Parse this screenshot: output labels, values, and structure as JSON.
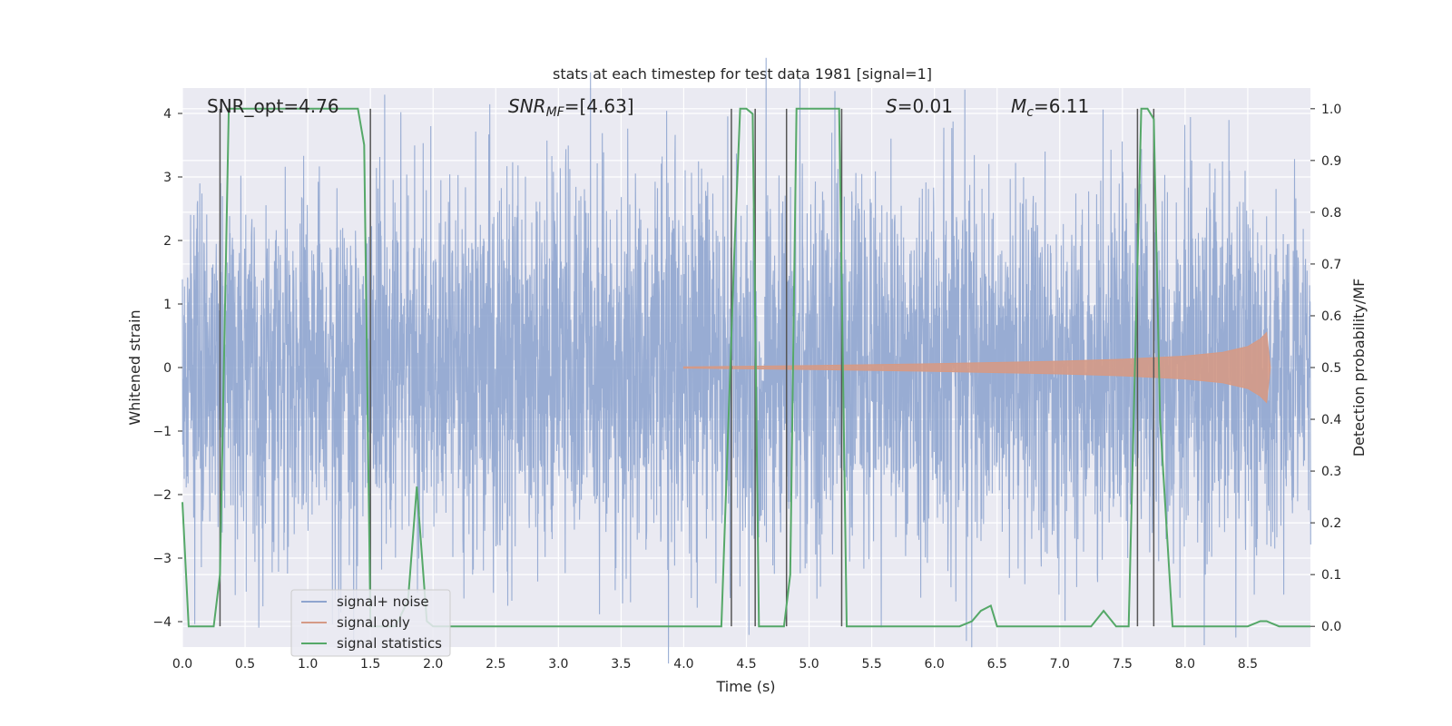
{
  "chart_data": {
    "type": "line",
    "title": "stats at each timestep for test data 1981 [signal=1]",
    "xlabel": "Time (s)",
    "ylabel_left": "Whitened strain",
    "ylabel_right": "Detection probability/MF",
    "xlim": [
      0.0,
      9.0
    ],
    "ylim_left": [
      -4.4,
      4.4
    ],
    "ylim_right": [
      -0.04,
      1.04
    ],
    "grid": true,
    "legend_position": "lower-left",
    "x_ticks": [
      "0.0",
      "0.5",
      "1.0",
      "1.5",
      "2.0",
      "2.5",
      "3.0",
      "3.5",
      "4.0",
      "4.5",
      "5.0",
      "5.5",
      "6.0",
      "6.5",
      "7.0",
      "7.5",
      "8.0",
      "8.5"
    ],
    "y_left_ticks": [
      "−4",
      "−3",
      "−2",
      "−1",
      "0",
      "1",
      "2",
      "3",
      "4"
    ],
    "y_right_ticks": [
      "0.0",
      "0.1",
      "0.2",
      "0.3",
      "0.4",
      "0.5",
      "0.6",
      "0.7",
      "0.8",
      "0.9",
      "1.0"
    ],
    "annotations": {
      "snr_opt": "SNR_opt=4.76",
      "snr_mf_base": "SNR",
      "snr_mf_sub": "MF",
      "snr_mf_value": "=[4.63]",
      "s_symbol": "S",
      "s_value": "=0.01",
      "mc_base": "M",
      "mc_sub": "c",
      "mc_value": "=6.11"
    },
    "vertical_markers": [
      0.3,
      1.5,
      4.38,
      4.57,
      4.82,
      5.26,
      7.62,
      7.75
    ],
    "series": [
      {
        "name": "signal+ noise",
        "color": "#8fa5cf",
        "axis": "left",
        "noise_amplitude": 1.7,
        "x_range": [
          0.0,
          9.0
        ]
      },
      {
        "name": "signal only",
        "color": "#d59a86",
        "axis": "left",
        "envelope": {
          "x": [
            4.0,
            5.0,
            6.0,
            7.0,
            7.5,
            8.0,
            8.3,
            8.5,
            8.6,
            8.65,
            8.68
          ],
          "amplitude": [
            0.01,
            0.03,
            0.06,
            0.1,
            0.13,
            0.18,
            0.24,
            0.33,
            0.45,
            0.55,
            0.0
          ]
        }
      },
      {
        "name": "signal statistics",
        "color": "#55a868",
        "axis": "right",
        "x": [
          0.0,
          0.05,
          0.1,
          0.15,
          0.2,
          0.25,
          0.3,
          0.37,
          0.42,
          0.5,
          1.0,
          1.4,
          1.45,
          1.5,
          1.55,
          1.6,
          1.7,
          1.8,
          1.87,
          1.95,
          2.0,
          2.5,
          3.0,
          3.5,
          4.0,
          4.3,
          4.4,
          4.45,
          4.5,
          4.55,
          4.6,
          4.7,
          4.8,
          4.85,
          4.9,
          5.0,
          5.24,
          5.3,
          5.4,
          6.0,
          6.2,
          6.3,
          6.37,
          6.45,
          6.5,
          6.6,
          7.0,
          7.25,
          7.35,
          7.45,
          7.55,
          7.6,
          7.65,
          7.7,
          7.75,
          7.8,
          7.9,
          8.0,
          8.5,
          8.6,
          8.65,
          8.75,
          9.0
        ],
        "y": [
          0.24,
          0.0,
          0.0,
          0.0,
          0.0,
          0.0,
          0.1,
          1.0,
          1.0,
          1.0,
          1.0,
          1.0,
          0.93,
          0.0,
          0.0,
          0.0,
          0.0,
          0.05,
          0.27,
          0.01,
          0.0,
          0.0,
          0.0,
          0.0,
          0.0,
          0.0,
          0.7,
          1.0,
          1.0,
          0.99,
          0.0,
          0.0,
          0.0,
          0.1,
          1.0,
          1.0,
          1.0,
          0.0,
          0.0,
          0.0,
          0.0,
          0.01,
          0.03,
          0.04,
          0.0,
          0.0,
          0.0,
          0.0,
          0.03,
          0.0,
          0.0,
          0.5,
          1.0,
          1.0,
          0.98,
          0.4,
          0.0,
          0.0,
          0.0,
          0.01,
          0.01,
          0.0,
          0.0
        ]
      }
    ]
  }
}
